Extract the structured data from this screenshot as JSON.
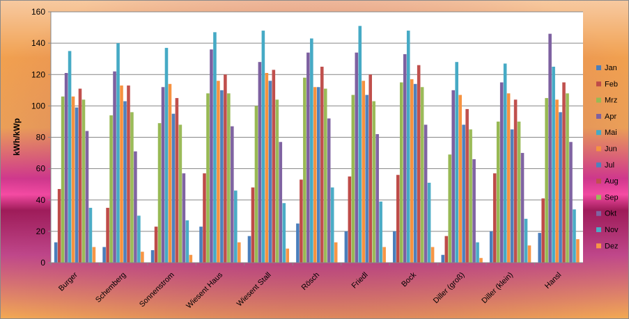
{
  "chart_data": {
    "type": "bar",
    "ylabel": "kWh/kWp",
    "xlabel": "",
    "ylim": [
      0,
      160
    ],
    "yticks": [
      0,
      20,
      40,
      60,
      80,
      100,
      120,
      140,
      160
    ],
    "grid": true,
    "legend_position": "right",
    "categories": [
      "Burger",
      "Schemberg",
      "Sonnenstrom",
      "Wiesent Haus",
      "Wiesent Stall",
      "Rösch",
      "Friedl",
      "Bock",
      "Diller (groß)",
      "Diller (klein)",
      "Hansl"
    ],
    "series": [
      {
        "name": "Jan",
        "color": "#4a7ebb",
        "values": [
          13,
          10,
          8,
          23,
          17,
          25,
          20,
          20,
          5,
          20,
          19
        ]
      },
      {
        "name": "Feb",
        "color": "#be4b48",
        "values": [
          47,
          35,
          23,
          57,
          48,
          53,
          55,
          56,
          17,
          57,
          41
        ]
      },
      {
        "name": "Mrz",
        "color": "#98b954",
        "values": [
          106,
          94,
          89,
          108,
          100,
          118,
          107,
          115,
          69,
          90,
          105
        ]
      },
      {
        "name": "Apr",
        "color": "#7d60a0",
        "values": [
          121,
          122,
          112,
          136,
          128,
          134,
          134,
          133,
          110,
          115,
          146
        ]
      },
      {
        "name": "Mai",
        "color": "#46aac5",
        "values": [
          135,
          140,
          137,
          147,
          148,
          143,
          151,
          148,
          128,
          127,
          125
        ]
      },
      {
        "name": "Jun",
        "color": "#f69240",
        "values": [
          106,
          113,
          114,
          116,
          121,
          112,
          116,
          117,
          107,
          108,
          104
        ]
      },
      {
        "name": "Jul",
        "color": "#4f81bd",
        "values": [
          99,
          103,
          95,
          110,
          116,
          112,
          107,
          114,
          88,
          85,
          96
        ]
      },
      {
        "name": "Aug",
        "color": "#c0504d",
        "values": [
          111,
          113,
          105,
          120,
          123,
          125,
          120,
          126,
          98,
          104,
          115
        ]
      },
      {
        "name": "Sep",
        "color": "#9bbb59",
        "values": [
          104,
          96,
          88,
          108,
          104,
          111,
          103,
          112,
          85,
          90,
          108
        ]
      },
      {
        "name": "Okt",
        "color": "#8064a2",
        "values": [
          84,
          71,
          57,
          87,
          77,
          92,
          82,
          88,
          66,
          70,
          77
        ]
      },
      {
        "name": "Nov",
        "color": "#4bacc6",
        "values": [
          35,
          30,
          27,
          46,
          38,
          48,
          39,
          51,
          13,
          28,
          34
        ]
      },
      {
        "name": "Dez",
        "color": "#f79646",
        "values": [
          10,
          7,
          5,
          13,
          9,
          13,
          10,
          10,
          3,
          11,
          15
        ]
      }
    ]
  }
}
